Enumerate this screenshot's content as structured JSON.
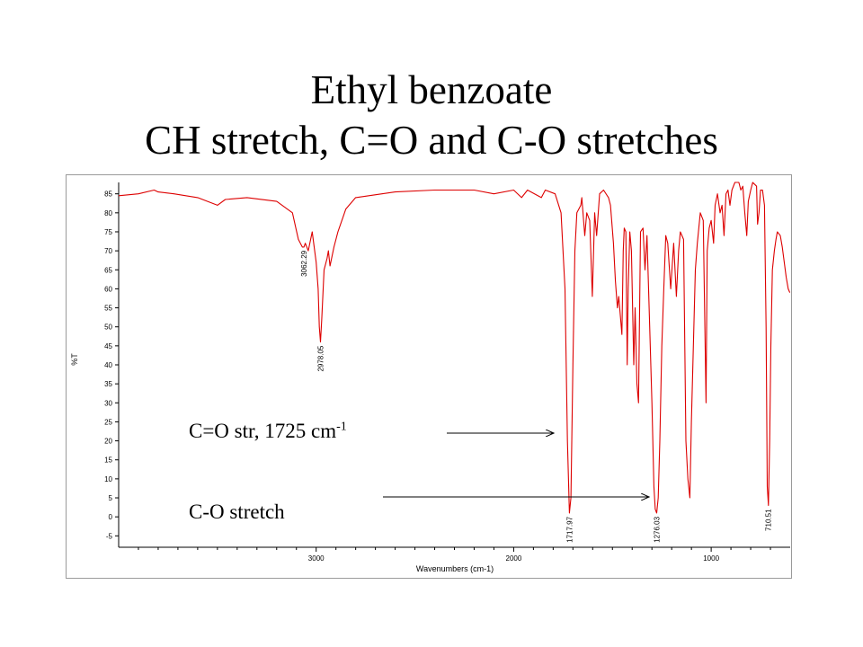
{
  "slide": {
    "title_line1": "Ethyl benzoate",
    "title_line2": "CH stretch, C=O and C-O stretches"
  },
  "annotations": {
    "co_double_label": "C=O str, 1725 cm",
    "co_double_sup": "-1",
    "co_single_label": "C-O stretch"
  },
  "colors": {
    "spectrum": "#dd0000",
    "axis": "#000000",
    "arrow": "#000000"
  },
  "chart_data": {
    "type": "line",
    "title": "",
    "xlabel": "Wavenumbers (cm-1)",
    "ylabel": "%T",
    "xlim": [
      4000,
      600
    ],
    "x_reversed": true,
    "ylim": [
      -8,
      88
    ],
    "x_ticks": [
      3000,
      2000,
      1000
    ],
    "y_ticks": [
      -5,
      0,
      5,
      10,
      15,
      20,
      25,
      30,
      35,
      40,
      45,
      50,
      55,
      60,
      65,
      70,
      75,
      80,
      85
    ],
    "grid": false,
    "legend": "none",
    "peak_labels": [
      {
        "x": 3062.29,
        "y": 71,
        "text": "3062.29"
      },
      {
        "x": 2978.05,
        "y": 46,
        "text": "2978.05"
      },
      {
        "x": 1717.97,
        "y": 1,
        "text": "1717.97"
      },
      {
        "x": 1276.03,
        "y": 1,
        "text": "1276.03"
      },
      {
        "x": 710.51,
        "y": 3,
        "text": "710.51"
      }
    ],
    "series": [
      {
        "values": [
          [
            4000,
            84.5
          ],
          [
            3900,
            85
          ],
          [
            3820,
            86
          ],
          [
            3800,
            85.5
          ],
          [
            3720,
            85
          ],
          [
            3600,
            84
          ],
          [
            3500,
            82
          ],
          [
            3460,
            83.5
          ],
          [
            3350,
            84
          ],
          [
            3200,
            83
          ],
          [
            3120,
            80
          ],
          [
            3090,
            73
          ],
          [
            3070,
            71
          ],
          [
            3062,
            71
          ],
          [
            3055,
            72
          ],
          [
            3040,
            70
          ],
          [
            3020,
            75
          ],
          [
            3000,
            67
          ],
          [
            2990,
            60
          ],
          [
            2984,
            50
          ],
          [
            2978,
            46
          ],
          [
            2972,
            52
          ],
          [
            2960,
            65
          ],
          [
            2945,
            68
          ],
          [
            2938,
            70
          ],
          [
            2930,
            66
          ],
          [
            2910,
            71
          ],
          [
            2890,
            75
          ],
          [
            2870,
            78
          ],
          [
            2850,
            81
          ],
          [
            2800,
            84
          ],
          [
            2600,
            85.5
          ],
          [
            2400,
            86
          ],
          [
            2200,
            86
          ],
          [
            2100,
            85
          ],
          [
            2000,
            86
          ],
          [
            1960,
            84
          ],
          [
            1930,
            86
          ],
          [
            1860,
            84
          ],
          [
            1840,
            86
          ],
          [
            1790,
            85
          ],
          [
            1760,
            80
          ],
          [
            1740,
            60
          ],
          [
            1728,
            20
          ],
          [
            1718,
            1
          ],
          [
            1710,
            5
          ],
          [
            1700,
            40
          ],
          [
            1690,
            70
          ],
          [
            1680,
            80
          ],
          [
            1660,
            82
          ],
          [
            1655,
            84
          ],
          [
            1640,
            74
          ],
          [
            1630,
            80
          ],
          [
            1615,
            78
          ],
          [
            1602,
            58
          ],
          [
            1590,
            80
          ],
          [
            1580,
            74
          ],
          [
            1565,
            85
          ],
          [
            1545,
            86
          ],
          [
            1520,
            84
          ],
          [
            1510,
            82
          ],
          [
            1495,
            72
          ],
          [
            1485,
            62
          ],
          [
            1475,
            55
          ],
          [
            1468,
            58
          ],
          [
            1452,
            48
          ],
          [
            1445,
            70
          ],
          [
            1440,
            76
          ],
          [
            1432,
            75
          ],
          [
            1425,
            40
          ],
          [
            1420,
            60
          ],
          [
            1412,
            75
          ],
          [
            1404,
            70
          ],
          [
            1392,
            40
          ],
          [
            1385,
            55
          ],
          [
            1376,
            35
          ],
          [
            1368,
            30
          ],
          [
            1358,
            75
          ],
          [
            1345,
            76
          ],
          [
            1335,
            65
          ],
          [
            1325,
            74
          ],
          [
            1314,
            55
          ],
          [
            1300,
            30
          ],
          [
            1290,
            8
          ],
          [
            1283,
            2
          ],
          [
            1276,
            1
          ],
          [
            1268,
            5
          ],
          [
            1260,
            20
          ],
          [
            1250,
            45
          ],
          [
            1240,
            60
          ],
          [
            1230,
            74
          ],
          [
            1220,
            72
          ],
          [
            1205,
            60
          ],
          [
            1190,
            72
          ],
          [
            1176,
            58
          ],
          [
            1165,
            70
          ],
          [
            1156,
            75
          ],
          [
            1140,
            73
          ],
          [
            1128,
            20
          ],
          [
            1118,
            10
          ],
          [
            1108,
            5
          ],
          [
            1100,
            25
          ],
          [
            1090,
            45
          ],
          [
            1080,
            65
          ],
          [
            1070,
            72
          ],
          [
            1055,
            80
          ],
          [
            1040,
            78
          ],
          [
            1026,
            30
          ],
          [
            1020,
            70
          ],
          [
            1010,
            76
          ],
          [
            1000,
            78
          ],
          [
            988,
            72
          ],
          [
            980,
            82
          ],
          [
            968,
            85
          ],
          [
            955,
            80
          ],
          [
            945,
            82
          ],
          [
            935,
            74
          ],
          [
            925,
            85
          ],
          [
            915,
            86
          ],
          [
            905,
            82
          ],
          [
            895,
            86
          ],
          [
            880,
            88
          ],
          [
            860,
            88
          ],
          [
            850,
            86
          ],
          [
            840,
            87
          ],
          [
            830,
            80
          ],
          [
            820,
            74
          ],
          [
            812,
            83
          ],
          [
            800,
            86
          ],
          [
            790,
            88
          ],
          [
            770,
            87
          ],
          [
            765,
            77
          ],
          [
            758,
            80
          ],
          [
            750,
            86
          ],
          [
            740,
            86
          ],
          [
            730,
            82
          ],
          [
            722,
            50
          ],
          [
            716,
            8
          ],
          [
            710,
            3
          ],
          [
            704,
            20
          ],
          [
            698,
            45
          ],
          [
            690,
            65
          ],
          [
            680,
            70
          ],
          [
            672,
            73
          ],
          [
            665,
            75
          ],
          [
            650,
            74
          ],
          [
            640,
            71
          ],
          [
            630,
            67
          ],
          [
            620,
            63
          ],
          [
            610,
            60
          ],
          [
            602,
            59
          ]
        ]
      }
    ]
  }
}
